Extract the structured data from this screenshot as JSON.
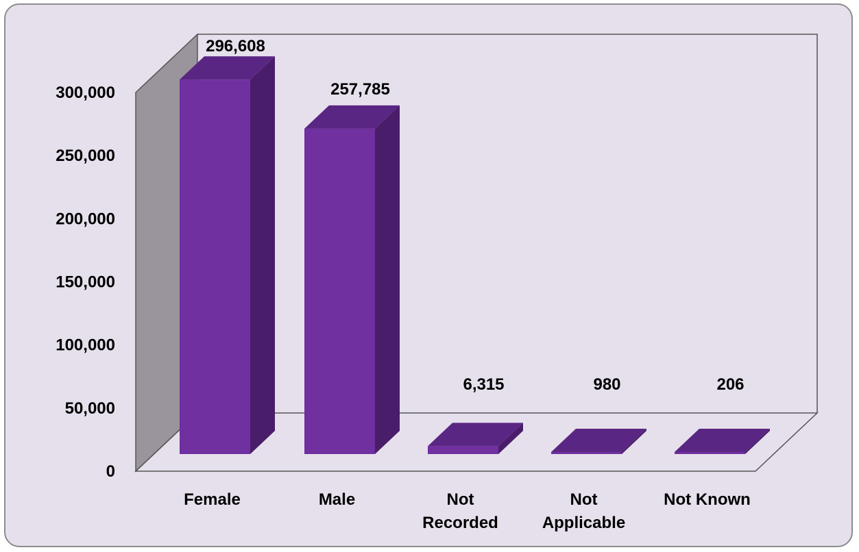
{
  "chart_data": {
    "type": "bar",
    "three_d": true,
    "categories": [
      "Female",
      "Male",
      "Not Recorded",
      "Not Applicable",
      "Not Known"
    ],
    "category_label_lines": [
      [
        "Female"
      ],
      [
        "Male"
      ],
      [
        "Not",
        "Recorded"
      ],
      [
        "Not",
        "Applicable"
      ],
      [
        "Not Known"
      ]
    ],
    "values": [
      296608,
      257785,
      6315,
      980,
      206
    ],
    "data_labels": [
      "296,608",
      "257,785",
      "6,315",
      "980",
      "206"
    ],
    "yticks": [
      0,
      50000,
      100000,
      150000,
      200000,
      250000,
      300000
    ],
    "ytick_labels": [
      "0",
      "50,000",
      "100,000",
      "150,000",
      "200,000",
      "250,000",
      "300,000"
    ],
    "ylim": [
      0,
      300000
    ],
    "grid": false,
    "legend": "none",
    "colors": {
      "bar_front": "#7030a0",
      "bar_top": "#5a2683",
      "bar_side": "#4a1d6a",
      "side_wall": "#9a949c",
      "plot_background": "#e6e0ec",
      "frame_border": "#8c8c8c"
    }
  }
}
